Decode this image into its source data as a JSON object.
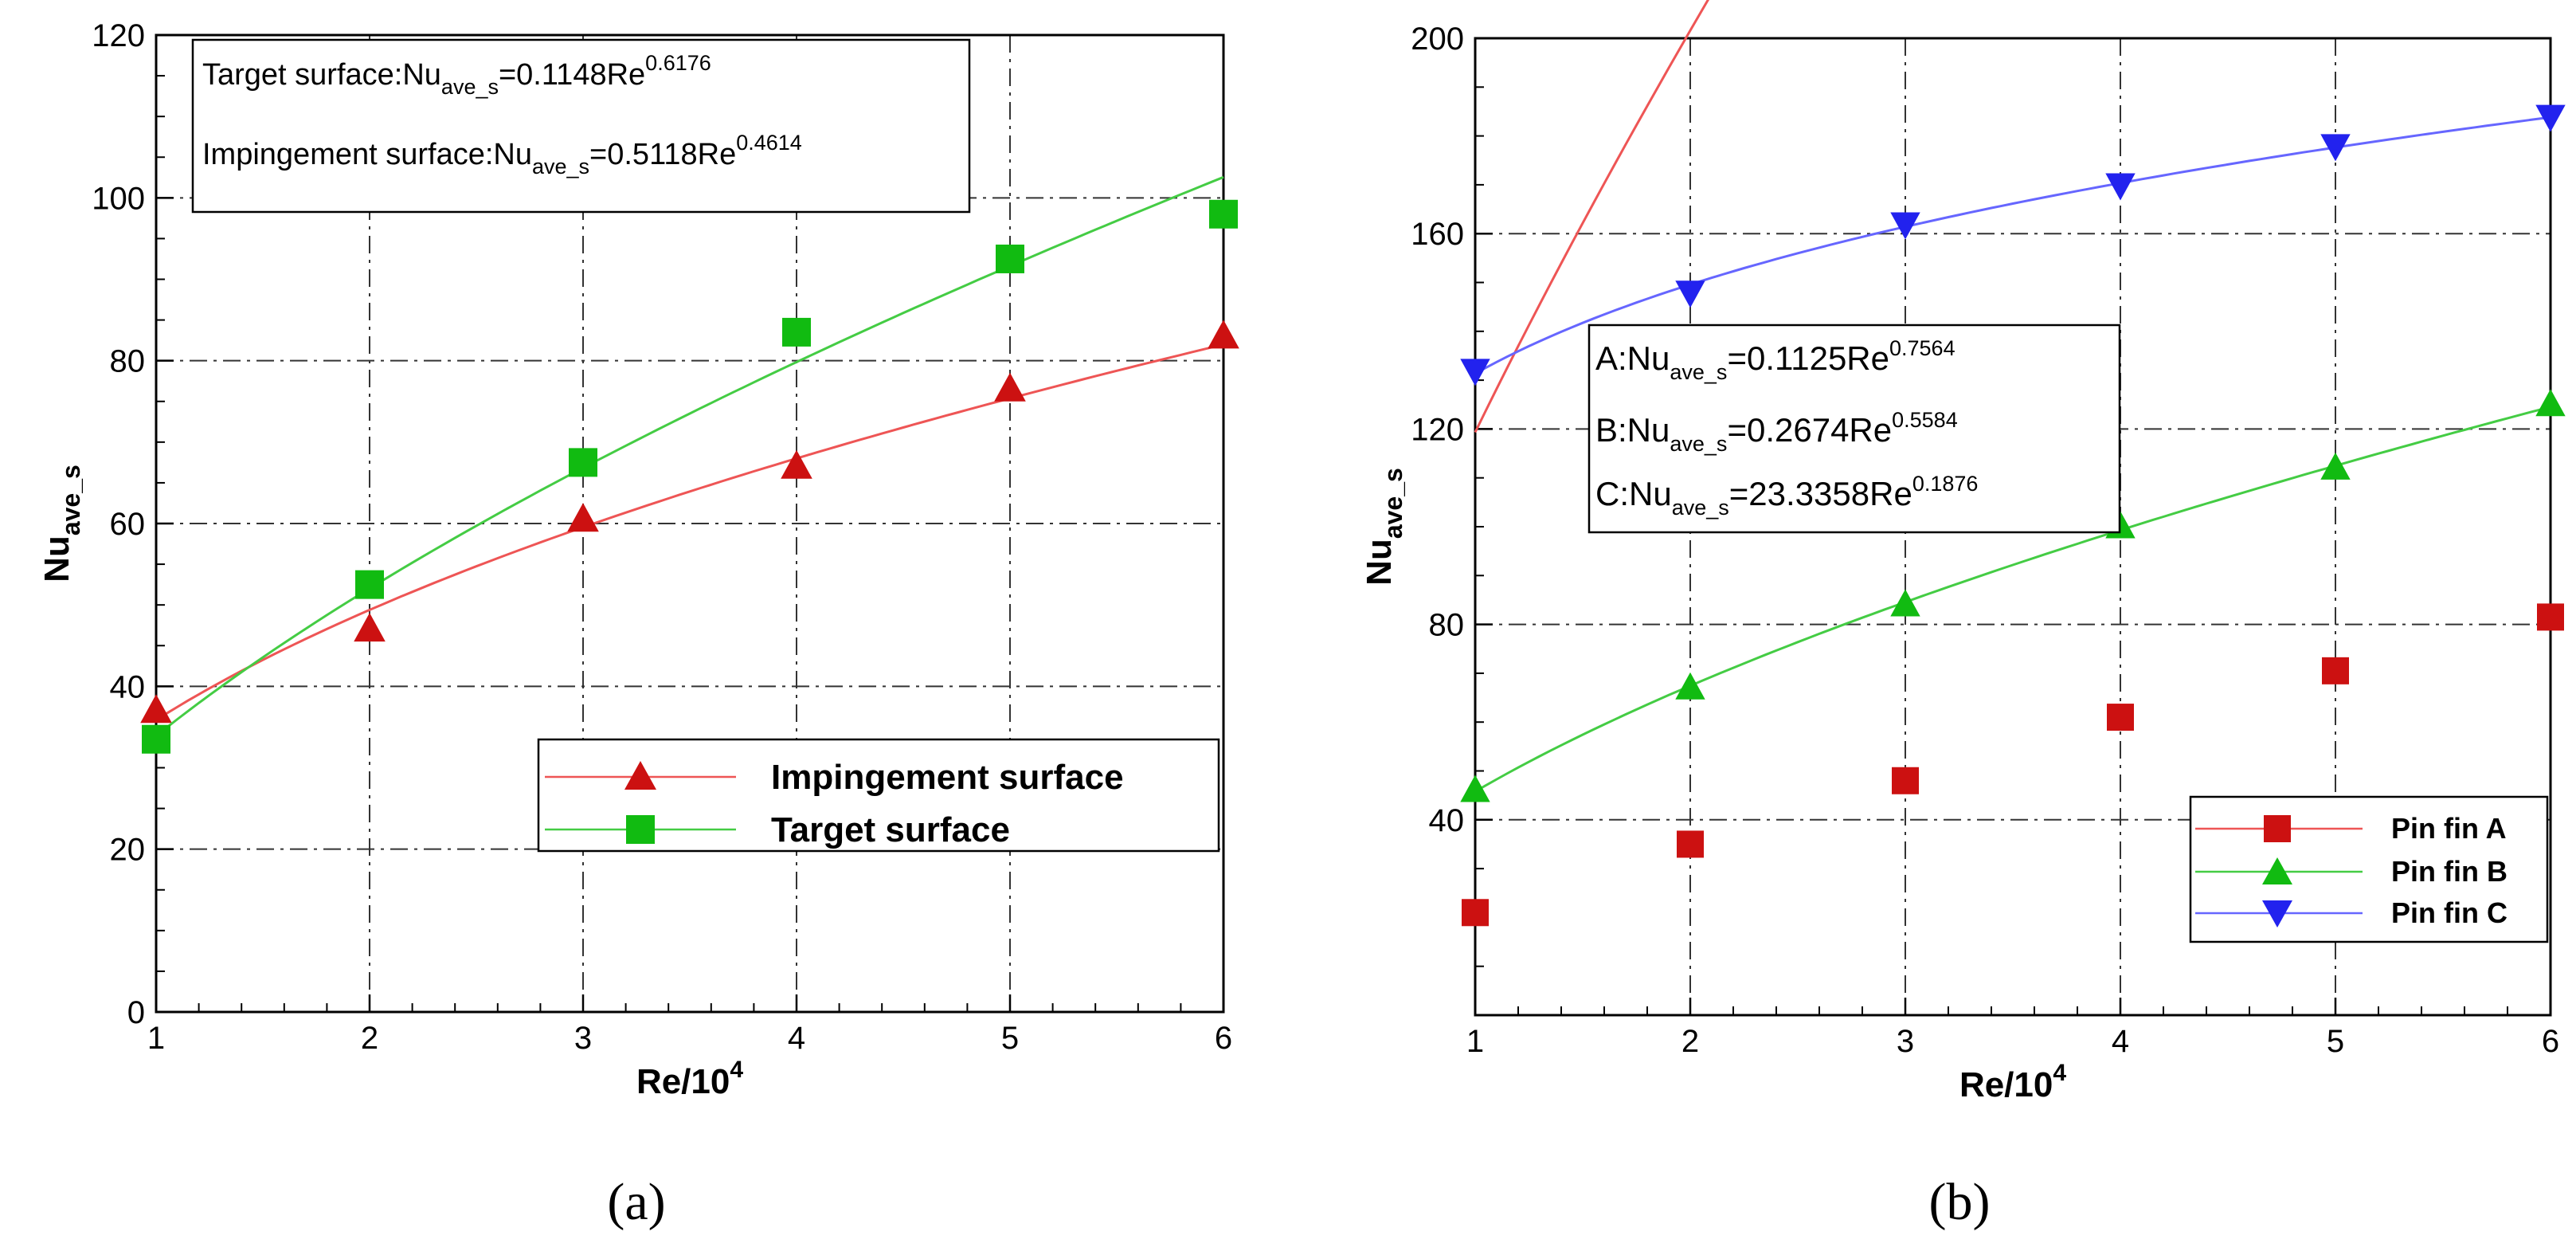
{
  "figure_captions": [
    "(a)",
    "(b)"
  ],
  "chart_data": [
    {
      "type": "line",
      "panel": "a",
      "title": "",
      "xlabel_base": "Re/10",
      "xlabel_sup": "4",
      "ylabel_base": "Nu",
      "ylabel_sub": "ave_s",
      "x": [
        1,
        2,
        3,
        4,
        5,
        6
      ],
      "xlim": [
        1,
        6
      ],
      "ylim": [
        0,
        120
      ],
      "xticks": [
        1,
        2,
        3,
        4,
        5,
        6
      ],
      "yticks": [
        0,
        20,
        40,
        60,
        80,
        100,
        120
      ],
      "grid": true,
      "series": [
        {
          "name": "Impingement surface",
          "color": "#cc1111",
          "line_color": "#ee5555",
          "marker": "triangle-up",
          "values": [
            37,
            47,
            60.5,
            67,
            76.5,
            83
          ],
          "fit": {
            "coef": 0.5118,
            "exp": 0.4614
          }
        },
        {
          "name": "Target surface",
          "color": "#11bb11",
          "line_color": "#44cc44",
          "marker": "square",
          "values": [
            33.5,
            52.5,
            67.5,
            83.5,
            92.5,
            98
          ],
          "fit": {
            "coef": 0.1148,
            "exp": 0.6176
          }
        }
      ],
      "annotations": [
        {
          "prefix": "Target surface:Nu",
          "sub": "ave_s",
          "mid": "=0.1148Re",
          "sup": "0.6176"
        },
        {
          "prefix": "Impingement surface:Nu",
          "sub": "ave_s",
          "mid": "=0.5118Re",
          "sup": "0.4614"
        }
      ],
      "legend_position": "lower-right"
    },
    {
      "type": "line",
      "panel": "b",
      "title": "",
      "xlabel_base": "Re/10",
      "xlabel_sup": "4",
      "ylabel_base": "Nu",
      "ylabel_sub": "ave_s",
      "x": [
        1,
        2,
        3,
        4,
        5,
        6
      ],
      "xlim": [
        1,
        6
      ],
      "ylim": [
        0,
        200
      ],
      "xticks": [
        1,
        2,
        3,
        4,
        5,
        6
      ],
      "yticks": [
        40,
        80,
        120,
        160,
        200
      ],
      "grid": true,
      "series": [
        {
          "name": "Pin fin A",
          "color": "#cc1111",
          "line_color": "#ee5555",
          "marker": "square",
          "values": [
            21,
            35,
            48,
            61,
            70.5,
            81.5
          ],
          "fit": {
            "coef": 0.1125,
            "exp": 0.7564
          }
        },
        {
          "name": "Pin fin B",
          "color": "#11bb11",
          "line_color": "#44cc44",
          "marker": "triangle-up",
          "values": [
            46,
            67,
            84,
            100,
            112,
            125
          ],
          "fit": {
            "coef": 0.2674,
            "exp": 0.5584
          }
        },
        {
          "name": "Pin fin C",
          "color": "#2222ee",
          "line_color": "#6666ff",
          "marker": "triangle-down",
          "values": [
            132,
            148,
            162,
            170,
            178,
            184
          ],
          "fit": {
            "coef": 23.3358,
            "exp": 0.1876
          }
        }
      ],
      "annotations": [
        {
          "prefix": "A:Nu",
          "sub": "ave_s",
          "mid": "=0.1125Re",
          "sup": "0.7564"
        },
        {
          "prefix": "B:Nu",
          "sub": "ave_s",
          "mid": "=0.2674Re",
          "sup": "0.5584"
        },
        {
          "prefix": "C:Nu",
          "sub": "ave_s",
          "mid": "=23.3358Re",
          "sup": "0.1876"
        }
      ],
      "legend_position": "lower-right"
    }
  ]
}
